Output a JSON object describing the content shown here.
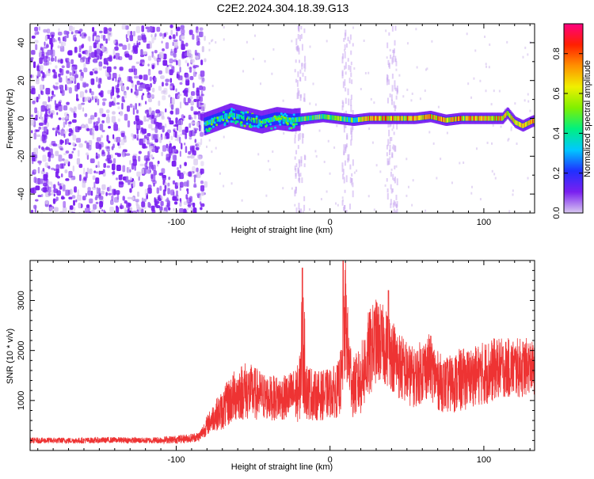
{
  "figure": {
    "title": "C2E2.2024.304.18.39.G13"
  },
  "chart_data": [
    {
      "type": "heatmap",
      "name": "spectrogram",
      "xlabel": "Height of straight line (km)",
      "ylabel": "Frequency (Hz)",
      "xlim": [
        -195,
        133
      ],
      "ylim": [
        -50,
        50
      ],
      "xticks": [
        -100,
        0,
        100
      ],
      "xticks_minor": [
        -190,
        -180,
        -170,
        -160,
        -150,
        -140,
        -130,
        -120,
        -110,
        -90,
        -80,
        -70,
        -60,
        -50,
        -40,
        -30,
        -20,
        -10,
        10,
        20,
        30,
        40,
        50,
        60,
        70,
        80,
        90,
        110,
        120,
        130
      ],
      "yticks": [
        -40,
        -20,
        0,
        20,
        40
      ],
      "yticks_minor": [
        -50,
        -30,
        -10,
        10,
        30
      ],
      "colorbar": {
        "label": "Normalized spectral amplitude",
        "ticks": [
          "0.0",
          "0.2",
          "0.4",
          "0.6",
          "0.8"
        ],
        "tick_values": [
          0.0,
          0.2,
          0.4,
          0.6,
          0.8
        ],
        "range": [
          0,
          0.95
        ],
        "colors": [
          "#d8c8f0",
          "#7a20f0",
          "#2030ff",
          "#00c8ff",
          "#00f080",
          "#80f000",
          "#f0f000",
          "#ff9000",
          "#ff2000",
          "#ff0080"
        ]
      },
      "features": {
        "noise_region_x": [
          -195,
          -82
        ],
        "signal_track": [
          {
            "x": -82,
            "y": -3
          },
          {
            "x": -75,
            "y": -1
          },
          {
            "x": -65,
            "y": 2
          },
          {
            "x": -55,
            "y": 0
          },
          {
            "x": -45,
            "y": -2
          },
          {
            "x": -35,
            "y": 0
          },
          {
            "x": -25,
            "y": -1
          },
          {
            "x": -15,
            "y": 0
          },
          {
            "x": -5,
            "y": 1
          },
          {
            "x": 5,
            "y": 0
          },
          {
            "x": 15,
            "y": -1
          },
          {
            "x": 25,
            "y": 0
          },
          {
            "x": 35,
            "y": 0
          },
          {
            "x": 45,
            "y": 0
          },
          {
            "x": 55,
            "y": 0
          },
          {
            "x": 65,
            "y": 1
          },
          {
            "x": 75,
            "y": -1
          },
          {
            "x": 85,
            "y": 0
          },
          {
            "x": 95,
            "y": 0
          },
          {
            "x": 105,
            "y": 0
          },
          {
            "x": 112,
            "y": 0
          },
          {
            "x": 115,
            "y": 3
          },
          {
            "x": 120,
            "y": -2
          },
          {
            "x": 125,
            "y": -4
          },
          {
            "x": 130,
            "y": -2
          },
          {
            "x": 133,
            "y": -1
          }
        ],
        "vertical_bands_x": [
          -20,
          11,
          40
        ]
      }
    },
    {
      "type": "line",
      "name": "snr",
      "xlabel": "Height of straight line (km)",
      "ylabel": "SNR (10 * v/v)",
      "xlim": [
        -195,
        133
      ],
      "ylim": [
        0,
        3800
      ],
      "xticks": [
        -100,
        0,
        100
      ],
      "xticks_minor": [
        -190,
        -180,
        -170,
        -160,
        -150,
        -140,
        -130,
        -120,
        -110,
        -90,
        -80,
        -70,
        -60,
        -50,
        -40,
        -30,
        -20,
        -10,
        10,
        20,
        30,
        40,
        50,
        60,
        70,
        80,
        90,
        110,
        120,
        130
      ],
      "yticks": [
        1000,
        2000,
        3000
      ],
      "yticks_minor": [
        200,
        400,
        600,
        800,
        1200,
        1400,
        1600,
        1800,
        2200,
        2400,
        2600,
        2800,
        3200,
        3400,
        3600
      ],
      "color": "#ee3333",
      "series": [
        {
          "x": [
            -195,
            -180,
            -160,
            -140,
            -120,
            -100,
            -90,
            -85,
            -80,
            -75,
            -70,
            -65,
            -60,
            -55,
            -50,
            -45,
            -40,
            -35,
            -30,
            -25,
            -20,
            -18,
            -15,
            -10,
            -5,
            0,
            5,
            8,
            10,
            12,
            15,
            20,
            25,
            30,
            35,
            40,
            45,
            50,
            55,
            60,
            65,
            70,
            75,
            80,
            85,
            90,
            95,
            100,
            105,
            110,
            115,
            120,
            125,
            130,
            133
          ],
          "y": [
            200,
            200,
            200,
            210,
            200,
            220,
            250,
            280,
            500,
            700,
            800,
            1000,
            1150,
            1200,
            1150,
            1100,
            1050,
            1050,
            1050,
            1100,
            1150,
            2200,
            1200,
            1100,
            1100,
            1150,
            1200,
            1500,
            2700,
            1800,
            1250,
            1400,
            1900,
            2200,
            2100,
            1950,
            1700,
            1550,
            1450,
            1600,
            1700,
            1400,
            1300,
            1350,
            1400,
            1450,
            1500,
            1550,
            1600,
            1650,
            1650,
            1650,
            1650,
            1700,
            1600
          ],
          "spread": [
            60,
            60,
            60,
            60,
            60,
            80,
            90,
            100,
            200,
            300,
            400,
            500,
            550,
            600,
            550,
            500,
            450,
            450,
            450,
            500,
            600,
            1400,
            600,
            500,
            500,
            500,
            550,
            700,
            1200,
            800,
            600,
            700,
            900,
            850,
            800,
            750,
            700,
            650,
            600,
            650,
            650,
            600,
            550,
            600,
            650,
            600,
            600,
            650,
            650,
            600,
            600,
            600,
            600,
            550,
            500
          ]
        }
      ]
    }
  ]
}
